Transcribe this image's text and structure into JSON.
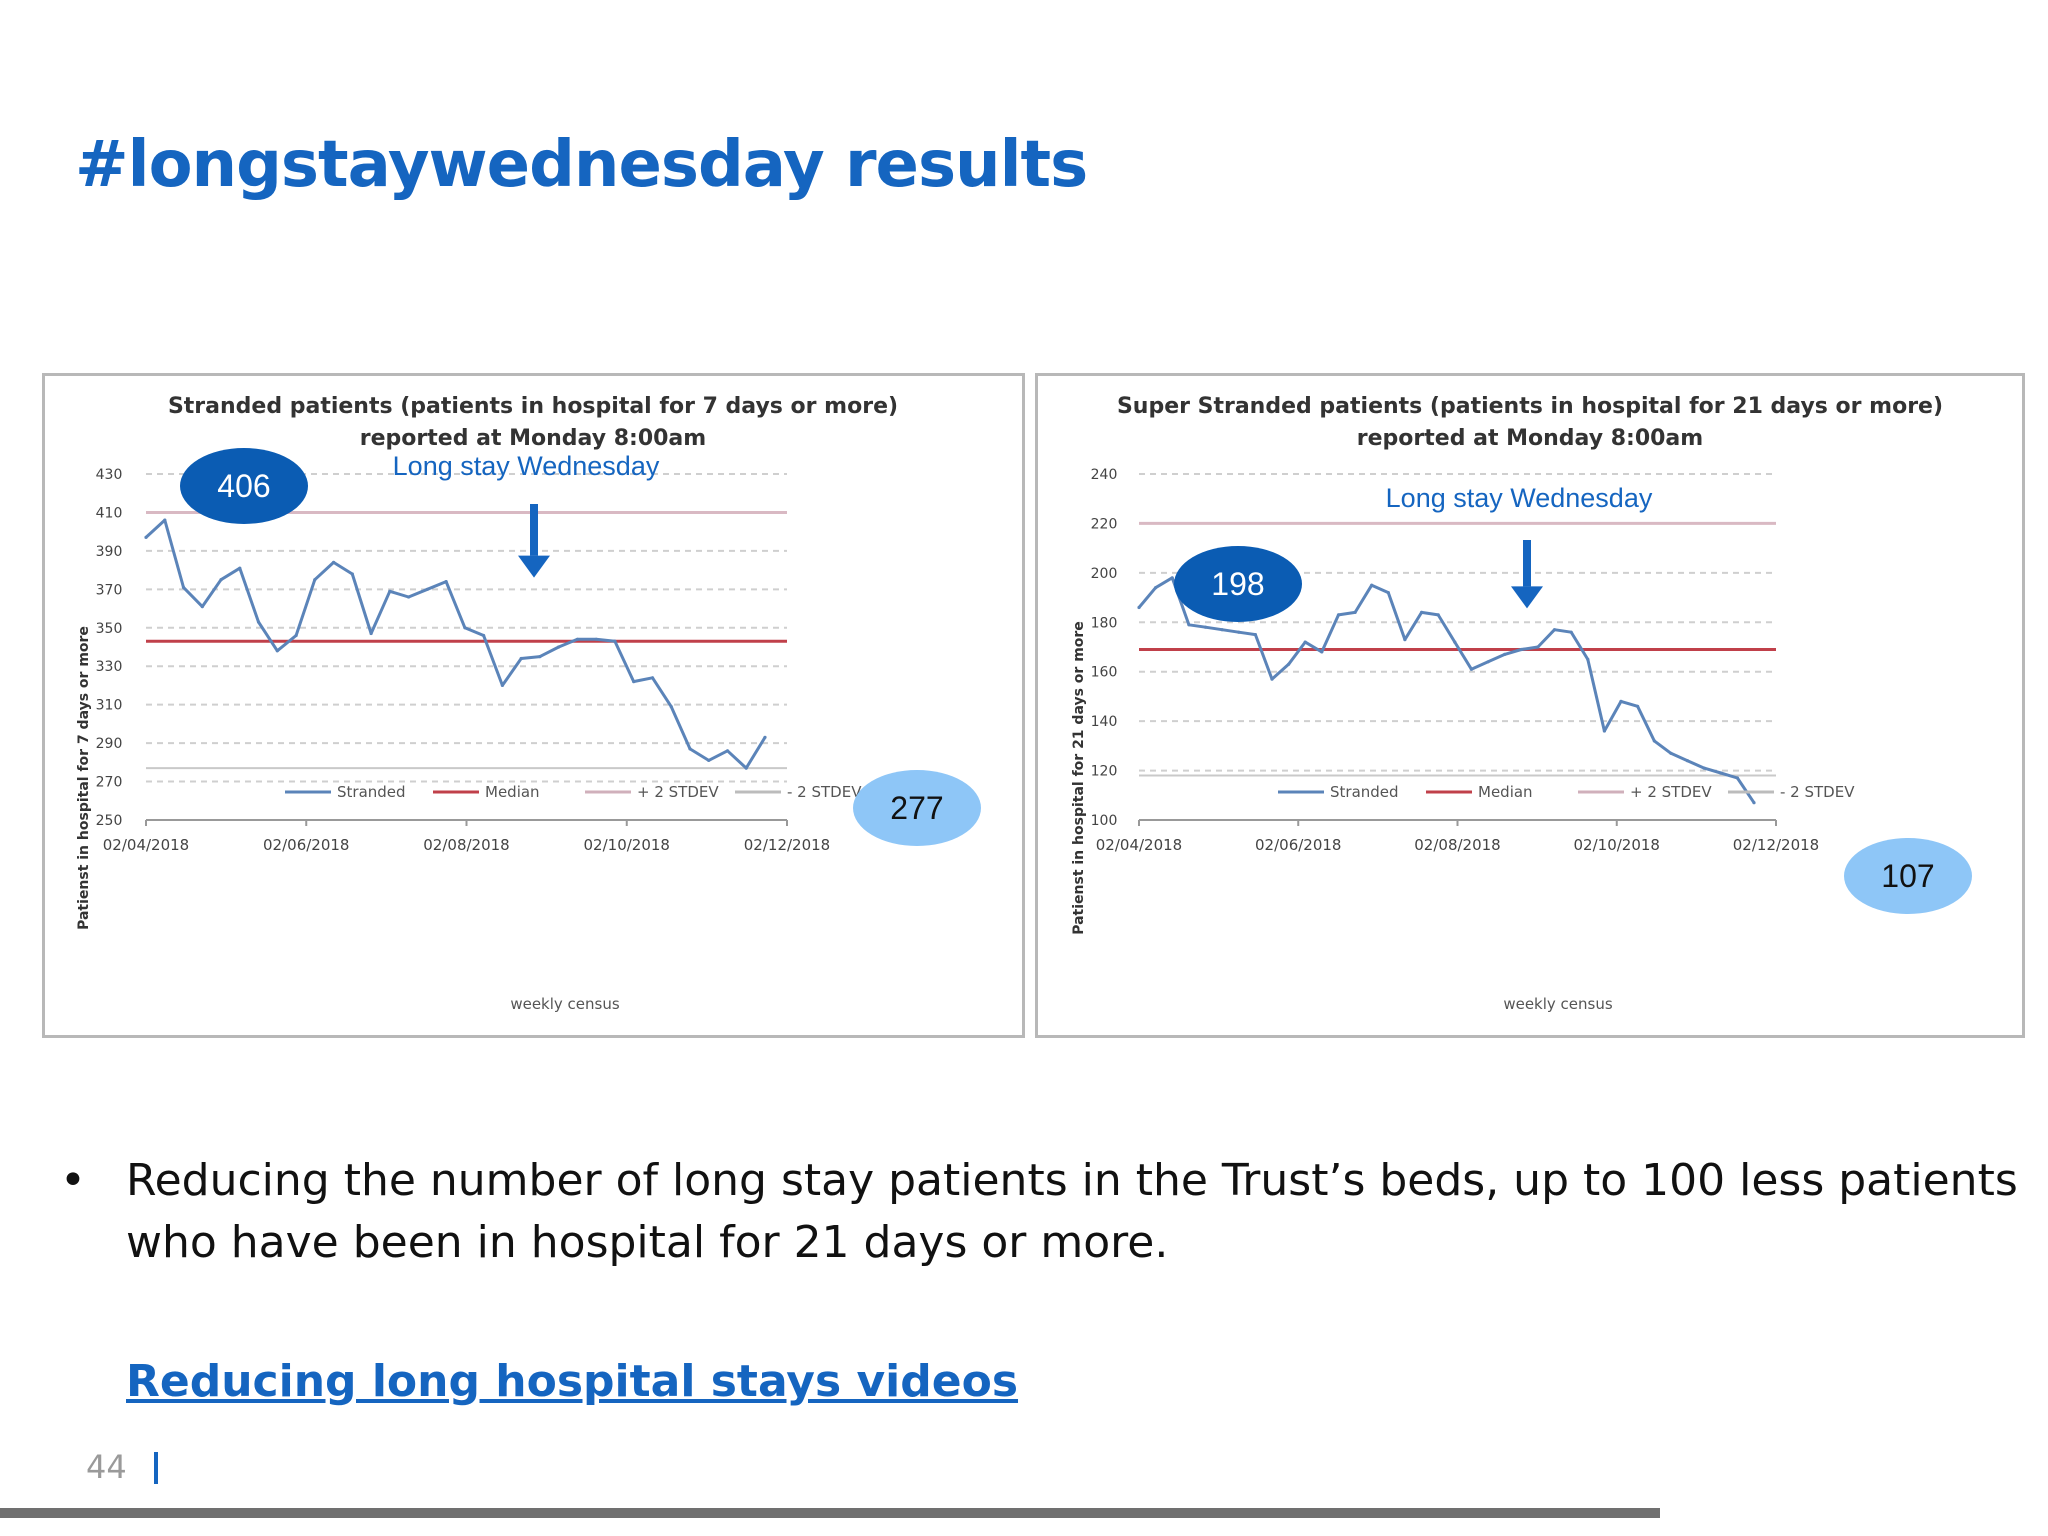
{
  "slide": {
    "title": "#longstaywednesday results",
    "bullet": "Reducing the number of long stay patients in the Trust’s beds, up to 100 less patients who have been in hospital for 21 days or more.",
    "link_text": "Reducing long hospital stays videos",
    "page_number": "44",
    "accent_color": "#1565c0"
  },
  "chart_data": [
    {
      "type": "line",
      "title": "Stranded patients (patients in hospital for 7 days or more)",
      "subtitle": "reported at Monday 8:00am",
      "xlabel": "weekly census",
      "ylabel": "Patienst in hospital for 7  days or more",
      "x_ticks": [
        "02/04/2018",
        "02/06/2018",
        "02/08/2018",
        "02/10/2018",
        "02/12/2018"
      ],
      "ylim": [
        250,
        430
      ],
      "y_ticks": [
        250,
        270,
        290,
        310,
        330,
        350,
        370,
        390,
        410,
        430
      ],
      "grid": true,
      "legend": [
        "Stranded",
        "Median",
        "+ 2 STDEV",
        "- 2 STDEV"
      ],
      "legend_position": "bottom",
      "series": [
        {
          "name": "Stranded",
          "color": "#5b84b9",
          "values": [
            397,
            406,
            371,
            361,
            375,
            381,
            353,
            338,
            346,
            375,
            384,
            378,
            347,
            369,
            366,
            370,
            374,
            350,
            346,
            320,
            334,
            335,
            340,
            344,
            344,
            343,
            322,
            324,
            309,
            287,
            281,
            286,
            277,
            293
          ]
        }
      ],
      "median": 343,
      "plus_2_stdev": 410,
      "minus_2_stdev": 277,
      "annotation": "Long stay Wednesday",
      "annotation_index": 16,
      "callouts": [
        {
          "text": "406",
          "color": "#0b5cb3",
          "text_color": "#ffffff"
        },
        {
          "text": "277",
          "color": "#8ec6f7",
          "text_color": "#111111"
        }
      ]
    },
    {
      "type": "line",
      "title": "Super Stranded patients (patients in hospital for 21 days or more)",
      "subtitle": "reported at Monday 8:00am",
      "xlabel": "weekly census",
      "ylabel": "Patienst in hospital for 21  days or more",
      "x_ticks": [
        "02/04/2018",
        "02/06/2018",
        "02/08/2018",
        "02/10/2018",
        "02/12/2018"
      ],
      "ylim": [
        100,
        240
      ],
      "y_ticks": [
        100,
        120,
        140,
        160,
        180,
        200,
        220,
        240
      ],
      "grid": true,
      "legend": [
        "Stranded",
        "Median",
        "+ 2 STDEV",
        "- 2 STDEV"
      ],
      "legend_position": "bottom",
      "series": [
        {
          "name": "Stranded",
          "color": "#5b84b9",
          "values": [
            186,
            194,
            198,
            179,
            178,
            177,
            176,
            175,
            157,
            163,
            172,
            168,
            183,
            184,
            195,
            192,
            173,
            184,
            183,
            172,
            161,
            164,
            167,
            169,
            170,
            177,
            176,
            165,
            136,
            148,
            146,
            132,
            127,
            124,
            121,
            119,
            117,
            107
          ]
        }
      ],
      "median": 169,
      "plus_2_stdev": 220,
      "minus_2_stdev": 118,
      "annotation": "Long stay Wednesday",
      "annotation_index": 17,
      "callouts": [
        {
          "text": "198",
          "color": "#0b5cb3",
          "text_color": "#ffffff"
        },
        {
          "text": "107",
          "color": "#8ec6f7",
          "text_color": "#111111"
        }
      ]
    }
  ]
}
